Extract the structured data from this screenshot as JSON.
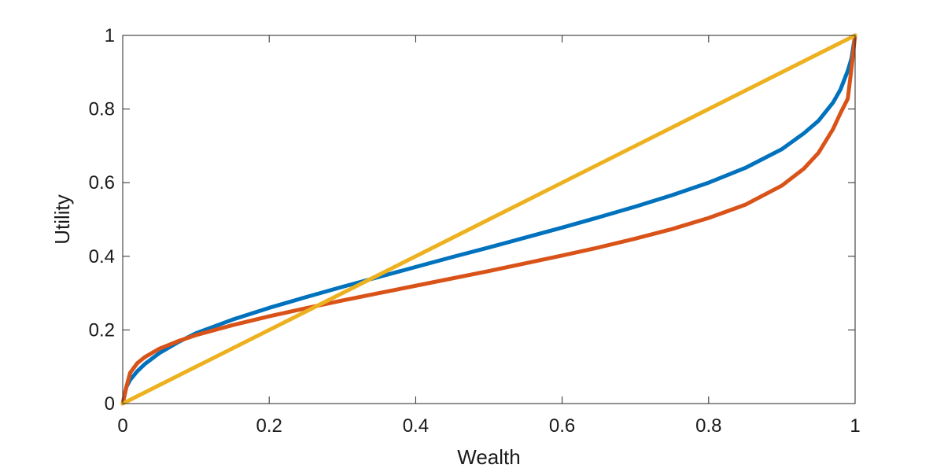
{
  "chart_data": {
    "type": "line",
    "title": "",
    "xlabel": "Wealth",
    "ylabel": "Utility",
    "xlim": [
      0,
      1
    ],
    "ylim": [
      0,
      1
    ],
    "x_ticks": [
      0,
      0.2,
      0.4,
      0.6,
      0.8,
      1
    ],
    "x_tick_labels": [
      "0",
      "0.2",
      "0.4",
      "0.6",
      "0.8",
      "1"
    ],
    "y_ticks": [
      0,
      0.2,
      0.4,
      0.6,
      0.8,
      1
    ],
    "y_tick_labels": [
      "0",
      "0.2",
      "0.4",
      "0.6",
      "0.8",
      "1"
    ],
    "grid": false,
    "legend": "none",
    "series": [
      {
        "color": "#0072BD",
        "x": [
          0,
          0.005,
          0.01,
          0.02,
          0.03,
          0.05,
          0.075,
          0.1,
          0.15,
          0.2,
          0.25,
          0.3,
          0.35,
          0.4,
          0.45,
          0.5,
          0.55,
          0.6,
          0.65,
          0.7,
          0.75,
          0.8,
          0.85,
          0.9,
          0.93,
          0.95,
          0.97,
          0.98,
          0.99,
          0.995,
          1
        ],
        "y": [
          0,
          0.045,
          0.064,
          0.088,
          0.107,
          0.137,
          0.166,
          0.191,
          0.228,
          0.26,
          0.289,
          0.317,
          0.344,
          0.371,
          0.398,
          0.424,
          0.451,
          0.478,
          0.506,
          0.535,
          0.566,
          0.6,
          0.64,
          0.691,
          0.734,
          0.768,
          0.818,
          0.853,
          0.904,
          0.937,
          1
        ]
      },
      {
        "color": "#D95319",
        "x": [
          0,
          0.005,
          0.01,
          0.02,
          0.03,
          0.05,
          0.075,
          0.1,
          0.15,
          0.2,
          0.25,
          0.3,
          0.35,
          0.4,
          0.45,
          0.5,
          0.55,
          0.6,
          0.65,
          0.7,
          0.75,
          0.8,
          0.85,
          0.9,
          0.93,
          0.95,
          0.97,
          0.98,
          0.99,
          0.995,
          1
        ],
        "y": [
          0,
          0.045,
          0.083,
          0.11,
          0.126,
          0.149,
          0.169,
          0.186,
          0.213,
          0.237,
          0.259,
          0.28,
          0.3,
          0.32,
          0.34,
          0.36,
          0.381,
          0.402,
          0.424,
          0.448,
          0.474,
          0.504,
          0.54,
          0.592,
          0.638,
          0.681,
          0.746,
          0.789,
          0.828,
          0.91,
          1
        ]
      },
      {
        "color": "#EDB120",
        "x": [
          0,
          1
        ],
        "y": [
          0,
          1
        ]
      }
    ]
  }
}
